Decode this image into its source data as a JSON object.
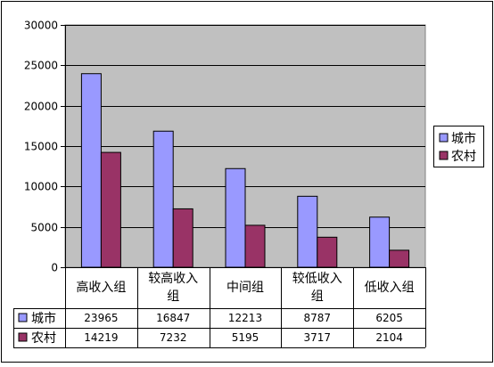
{
  "chart_data": {
    "type": "bar",
    "categories": [
      "高收入组",
      "较高收入组",
      "中间组",
      "较低收入组",
      "低收入组"
    ],
    "category_lines": [
      [
        "高收入组"
      ],
      [
        "较高收入",
        "组"
      ],
      [
        "中间组"
      ],
      [
        "较低收入",
        "组"
      ],
      [
        "低收入组"
      ]
    ],
    "series": [
      {
        "name": "城市",
        "values": [
          23965,
          16847,
          12213,
          8787,
          6205
        ],
        "color": "#9999ff"
      },
      {
        "name": "农村",
        "values": [
          14219,
          7232,
          5195,
          3717,
          2104
        ],
        "color": "#993366"
      }
    ],
    "ylim": [
      0,
      30000
    ],
    "yticks": [
      "0",
      "5000",
      "10000",
      "15000",
      "20000",
      "25000",
      "30000"
    ],
    "grid": true,
    "plot_background": "#c0c0c0",
    "legend": "right",
    "data_table": true,
    "title": "",
    "xlabel": "",
    "ylabel": ""
  }
}
